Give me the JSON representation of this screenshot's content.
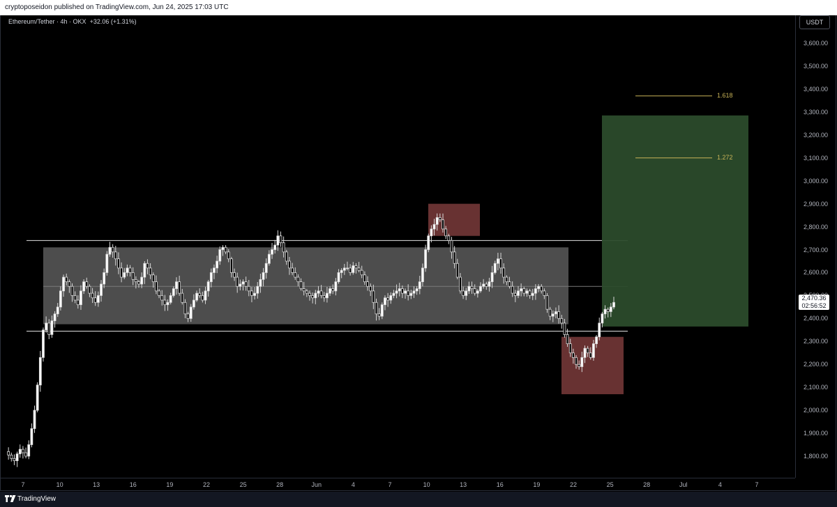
{
  "header": {
    "text": "cryptoposeidon published on TradingView.com, Jun 24, 2025 17:03 UTC"
  },
  "symbol": {
    "name": "Ethereum/Tether · 4h · OKX",
    "change": "+32.06 (+1.31%)"
  },
  "currency_button": "USDT",
  "current_price": {
    "value": "2,470.36",
    "countdown": "02:56:52"
  },
  "footer": {
    "brand": "TradingView"
  },
  "colors": {
    "background": "#000000",
    "range_box": "#5a5a5a",
    "stop_box": "#6e3535",
    "target_box": "#2b4b2b",
    "fib_line": "#c9b458"
  },
  "fib_levels": [
    {
      "label": "1.618",
      "price": 3370
    },
    {
      "label": "1.272",
      "price": 3100
    }
  ],
  "chart_data": {
    "type": "candlestick",
    "x_ticks": [
      "7",
      "10",
      "13",
      "16",
      "19",
      "22",
      "25",
      "28",
      "Jun",
      "4",
      "7",
      "10",
      "13",
      "16",
      "19",
      "22",
      "25",
      "28",
      "Jul",
      "4",
      "7"
    ],
    "y_ticks": [
      "3,600.00",
      "3,500.00",
      "3,400.00",
      "3,300.00",
      "3,200.00",
      "3,100.00",
      "3,000.00",
      "2,900.00",
      "2,800.00",
      "2,700.00",
      "2,600.00",
      "2,500.00",
      "2,400.00",
      "2,300.00",
      "2,200.00",
      "2,100.00",
      "2,000.00",
      "1,900.00",
      "1,800.00"
    ],
    "ylim": [
      1730,
      3640
    ],
    "range_box": {
      "top": 2710,
      "bottom": 2375,
      "mid": 2540
    },
    "range_lines": [
      2740,
      2345
    ],
    "stop_box_top": {
      "top": 2900,
      "bottom": 2760
    },
    "stop_box_bottom": {
      "top": 2320,
      "bottom": 2070
    },
    "target_box": {
      "top": 3285,
      "bottom": 2365
    },
    "series": [
      1820,
      1805,
      1790,
      1780,
      1810,
      1830,
      1815,
      1800,
      1850,
      1920,
      2000,
      2110,
      2230,
      2350,
      2380,
      2330,
      2390,
      2420,
      2450,
      2520,
      2580,
      2560,
      2540,
      2500,
      2480,
      2460,
      2520,
      2560,
      2540,
      2510,
      2490,
      2470,
      2500,
      2550,
      2600,
      2680,
      2710,
      2690,
      2660,
      2620,
      2580,
      2600,
      2620,
      2600,
      2570,
      2560,
      2550,
      2580,
      2640,
      2620,
      2590,
      2560,
      2520,
      2500,
      2480,
      2460,
      2470,
      2500,
      2530,
      2560,
      2510,
      2470,
      2420,
      2400,
      2450,
      2480,
      2510,
      2500,
      2480,
      2520,
      2560,
      2600,
      2620,
      2650,
      2700,
      2710,
      2690,
      2660,
      2600,
      2580,
      2540,
      2550,
      2560,
      2540,
      2520,
      2500,
      2510,
      2540,
      2570,
      2600,
      2640,
      2680,
      2700,
      2720,
      2760,
      2730,
      2690,
      2650,
      2620,
      2600,
      2580,
      2560,
      2530,
      2520,
      2510,
      2500,
      2490,
      2510,
      2520,
      2500,
      2490,
      2510,
      2530,
      2520,
      2560,
      2600,
      2610,
      2620,
      2620,
      2600,
      2630,
      2620,
      2610,
      2590,
      2560,
      2540,
      2520,
      2470,
      2420,
      2410,
      2460,
      2490,
      2480,
      2500,
      2510,
      2520,
      2530,
      2510,
      2520,
      2500,
      2510,
      2520,
      2530,
      2560,
      2620,
      2700,
      2760,
      2790,
      2810,
      2840,
      2830,
      2790,
      2760,
      2740,
      2690,
      2640,
      2580,
      2520,
      2500,
      2520,
      2540,
      2530,
      2510,
      2520,
      2540,
      2550,
      2540,
      2560,
      2600,
      2640,
      2660,
      2620,
      2580,
      2560,
      2540,
      2510,
      2500,
      2520,
      2530,
      2510,
      2520,
      2500,
      2510,
      2530,
      2540,
      2520,
      2500,
      2440,
      2410,
      2420,
      2430,
      2400,
      2380,
      2330,
      2290,
      2250,
      2230,
      2200,
      2190,
      2230,
      2270,
      2250,
      2230,
      2290,
      2320,
      2380,
      2420,
      2440,
      2430,
      2450,
      2470
    ]
  }
}
